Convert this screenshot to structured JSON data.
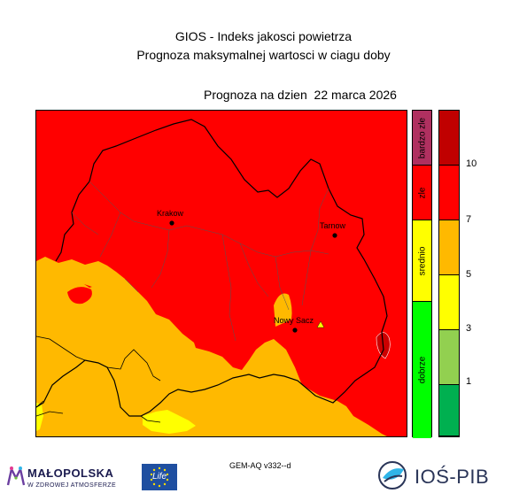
{
  "header": {
    "title_line1": "GIOS - Indeks jakosci powietrza",
    "title_line2": "Prognoza maksymalnej wartosci w ciagu doby",
    "forecast_date": "Prognoza na dzien  22 marca 2026"
  },
  "map": {
    "cities": [
      {
        "name": "Krakow"
      },
      {
        "name": "Tarnow"
      },
      {
        "name": "Nowy Sacz"
      }
    ],
    "zone_colors": {
      "red": "#ff0000",
      "orange": "#ffb900",
      "yellow": "#ffff00",
      "darkred": "#cc0000"
    }
  },
  "categories": [
    {
      "label": "bardzo zle",
      "color": "#b03060"
    },
    {
      "label": "zle",
      "color": "#ff0000"
    },
    {
      "label": "srednio",
      "color": "#ffff00"
    },
    {
      "label": "dobrze",
      "color": "#00ff00"
    }
  ],
  "scale": {
    "levels": [
      {
        "color": "#c00000"
      },
      {
        "color": "#ff0000"
      },
      {
        "color": "#ffb900"
      },
      {
        "color": "#ffff00"
      },
      {
        "color": "#92d050"
      },
      {
        "color": "#00b050"
      }
    ],
    "ticks": [
      "10",
      "7",
      "5",
      "3",
      "1"
    ]
  },
  "footer": {
    "model": "GEM-AQ v332--d",
    "malopolska_name": "MAŁOPOLSKA",
    "malopolska_sub": "W ZDROWEJ ATMOSFERZE",
    "eu_text": "Life",
    "ios_name": "IOŚ-PIB"
  }
}
